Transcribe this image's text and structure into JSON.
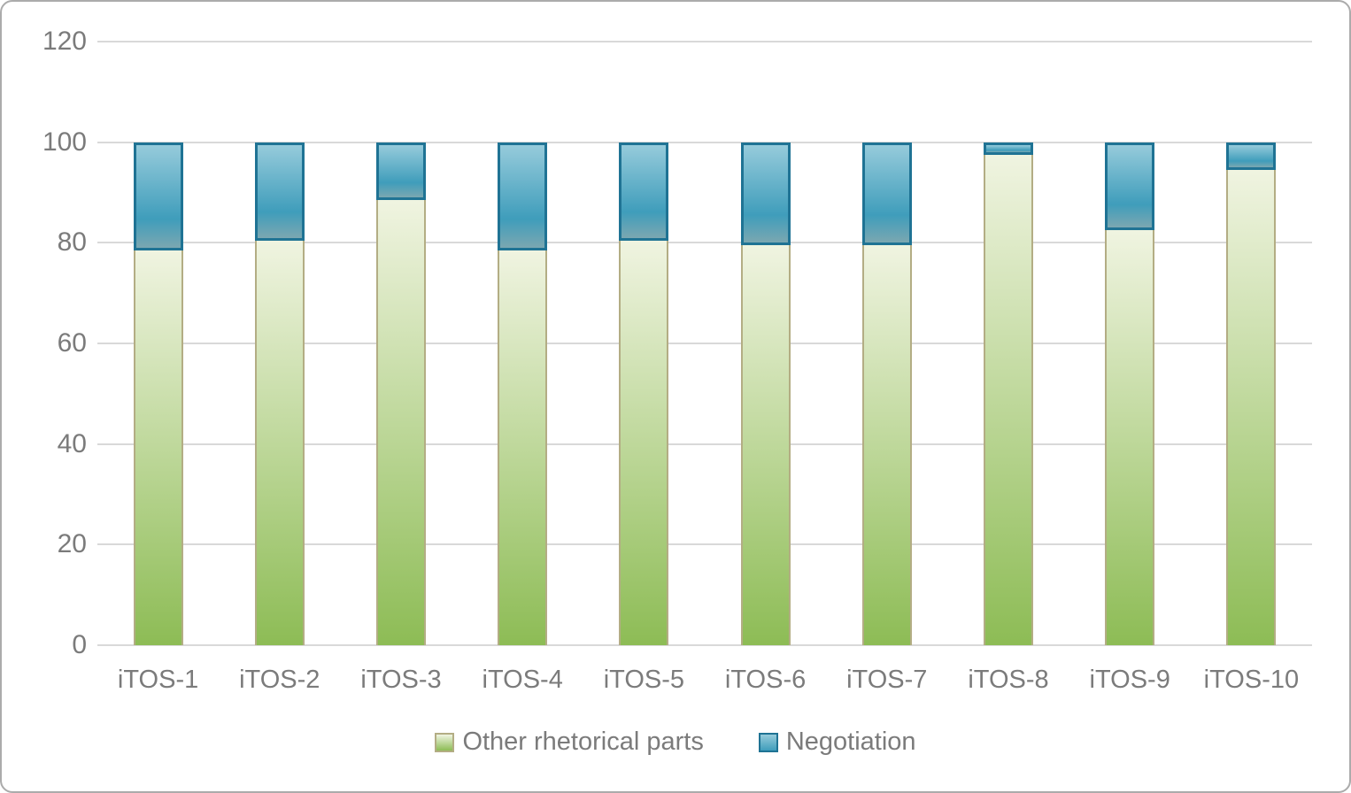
{
  "chart_data": {
    "type": "bar",
    "stacked": true,
    "title": "",
    "xlabel": "",
    "ylabel": "",
    "categories": [
      "iTOS-1",
      "iTOS-2",
      "iTOS-3",
      "iTOS-4",
      "iTOS-5",
      "iTOS-6",
      "iTOS-7",
      "iTOS-8",
      "iTOS-9",
      "iTOS-10"
    ],
    "series": [
      {
        "name": "Other rhetorical parts",
        "values": [
          79,
          81,
          89,
          79,
          81,
          80,
          80,
          98,
          83,
          95
        ]
      },
      {
        "name": "Negotiation",
        "values": [
          21,
          19,
          11,
          21,
          19,
          20,
          20,
          2,
          17,
          5
        ]
      }
    ],
    "y_ticks": [
      0,
      20,
      40,
      60,
      80,
      100,
      120
    ],
    "ylim": [
      0,
      120
    ],
    "grid": true,
    "legend_position": "bottom"
  },
  "legend": {
    "items": [
      {
        "label": "Other rhetorical parts",
        "swatch": "green-gradient-square"
      },
      {
        "label": "Negotiation",
        "swatch": "blue-gradient-square"
      }
    ]
  },
  "colors": {
    "green_fill_top": "#f0f4e1",
    "green_fill_bottom": "#8dbc55",
    "green_border": "#b3ad84",
    "blue_fill_top": "#96cbdb",
    "blue_fill_mid": "#3f9dbb",
    "blue_fill_bottom": "#7ba7b1",
    "blue_border": "#1f7394",
    "gridline": "#d9d9d9",
    "axis_text": "#7b7b7b",
    "frame_border": "#ababab"
  }
}
